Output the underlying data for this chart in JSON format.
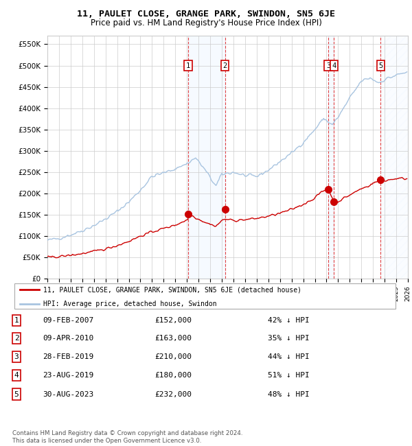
{
  "title": "11, PAULET CLOSE, GRANGE PARK, SWINDON, SN5 6JE",
  "subtitle": "Price paid vs. HM Land Registry's House Price Index (HPI)",
  "ylim": [
    0,
    570000
  ],
  "yticks": [
    0,
    50000,
    100000,
    150000,
    200000,
    250000,
    300000,
    350000,
    400000,
    450000,
    500000,
    550000
  ],
  "ytick_labels": [
    "£0",
    "£50K",
    "£100K",
    "£150K",
    "£200K",
    "£250K",
    "£300K",
    "£350K",
    "£400K",
    "£450K",
    "£500K",
    "£550K"
  ],
  "hpi_color": "#a8c4e0",
  "price_color": "#cc0000",
  "shade_color": "#ddeeff",
  "transactions": [
    {
      "num": 1,
      "date": "09-FEB-2007",
      "year": 2007.11,
      "price": 152000,
      "pct": "42% ↓ HPI"
    },
    {
      "num": 2,
      "date": "09-APR-2010",
      "year": 2010.27,
      "price": 163000,
      "pct": "35% ↓ HPI"
    },
    {
      "num": 3,
      "date": "28-FEB-2019",
      "year": 2019.16,
      "price": 210000,
      "pct": "44% ↓ HPI"
    },
    {
      "num": 4,
      "date": "23-AUG-2019",
      "year": 2019.64,
      "price": 180000,
      "pct": "51% ↓ HPI"
    },
    {
      "num": 5,
      "date": "30-AUG-2023",
      "year": 2023.66,
      "price": 232000,
      "pct": "48% ↓ HPI"
    }
  ],
  "legend_house": "11, PAULET CLOSE, GRANGE PARK, SWINDON, SN5 6JE (detached house)",
  "legend_hpi": "HPI: Average price, detached house, Swindon",
  "footer": "Contains HM Land Registry data © Crown copyright and database right 2024.\nThis data is licensed under the Open Government Licence v3.0.",
  "xmin": 1995,
  "xmax": 2026
}
